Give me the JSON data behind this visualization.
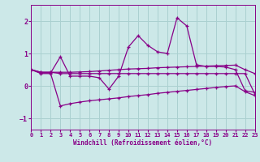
{
  "x": [
    0,
    1,
    2,
    3,
    4,
    5,
    6,
    7,
    8,
    9,
    10,
    11,
    12,
    13,
    14,
    15,
    16,
    17,
    18,
    19,
    20,
    21,
    22,
    23
  ],
  "line_main": [
    0.5,
    0.4,
    0.4,
    0.9,
    0.3,
    0.3,
    0.3,
    0.25,
    -0.1,
    0.3,
    1.2,
    1.55,
    1.25,
    1.05,
    1.0,
    2.1,
    1.85,
    0.65,
    0.6,
    0.6,
    0.58,
    0.5,
    -0.15,
    -0.2
  ],
  "line_flat1": [
    0.5,
    0.42,
    0.42,
    0.42,
    0.42,
    0.43,
    0.44,
    0.46,
    0.48,
    0.5,
    0.52,
    0.53,
    0.54,
    0.56,
    0.57,
    0.58,
    0.59,
    0.6,
    0.61,
    0.62,
    0.63,
    0.64,
    0.5,
    0.38
  ],
  "line_flat2": [
    0.5,
    0.42,
    0.42,
    0.38,
    0.38,
    0.38,
    0.38,
    0.38,
    0.38,
    0.38,
    0.38,
    0.38,
    0.38,
    0.38,
    0.38,
    0.38,
    0.38,
    0.38,
    0.38,
    0.38,
    0.38,
    0.38,
    0.38,
    -0.25
  ],
  "line_lower": [
    0.5,
    0.38,
    0.38,
    -0.62,
    -0.55,
    -0.5,
    -0.46,
    -0.43,
    -0.4,
    -0.37,
    -0.33,
    -0.3,
    -0.27,
    -0.23,
    -0.2,
    -0.17,
    -0.14,
    -0.11,
    -0.08,
    -0.05,
    -0.02,
    0.0,
    -0.18,
    -0.3
  ],
  "color": "#880088",
  "bg_color": "#cce8e8",
  "grid_color": "#aad0d0",
  "xlabel": "Windchill (Refroidissement éolien,°C)",
  "xlim": [
    0,
    23
  ],
  "ylim": [
    -1.35,
    2.5
  ],
  "yticks": [
    -1,
    0,
    1,
    2
  ],
  "xticks": [
    0,
    1,
    2,
    3,
    4,
    5,
    6,
    7,
    8,
    9,
    10,
    11,
    12,
    13,
    14,
    15,
    16,
    17,
    18,
    19,
    20,
    21,
    22,
    23
  ]
}
